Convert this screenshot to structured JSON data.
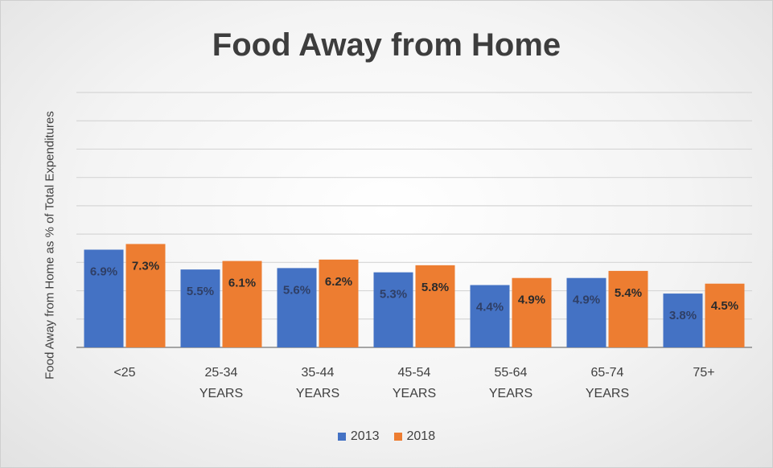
{
  "chart_data": {
    "type": "bar",
    "title": "Food Away from Home",
    "ylabel": "Food Away from Home as % of Total Expenditures",
    "xlabel": "",
    "categories": [
      "<25",
      "25-34 YEARS",
      "35-44 YEARS",
      "45-54 YEARS",
      "55-64 YEARS",
      "65-74 YEARS",
      "75+"
    ],
    "category_lines": [
      [
        "<25"
      ],
      [
        "25-34",
        "YEARS"
      ],
      [
        "35-44",
        "YEARS"
      ],
      [
        "45-54",
        "YEARS"
      ],
      [
        "55-64",
        "YEARS"
      ],
      [
        "65-74",
        "YEARS"
      ],
      [
        "75+"
      ]
    ],
    "series": [
      {
        "name": "2013",
        "color": "#4472c4",
        "values": [
          6.9,
          5.5,
          5.6,
          5.3,
          4.4,
          4.9,
          3.8
        ],
        "labels": [
          "6.9%",
          "5.5%",
          "5.6%",
          "5.3%",
          "4.4%",
          "4.9%",
          "3.8%"
        ]
      },
      {
        "name": "2018",
        "color": "#ed7d31",
        "values": [
          7.3,
          6.1,
          6.2,
          5.8,
          4.9,
          5.4,
          4.5
        ],
        "labels": [
          "7.3%",
          "6.1%",
          "6.2%",
          "5.8%",
          "4.9%",
          "5.4%",
          "4.5%"
        ]
      }
    ],
    "ylim": [
      0,
      18
    ],
    "grid": true,
    "legend_position": "bottom"
  }
}
